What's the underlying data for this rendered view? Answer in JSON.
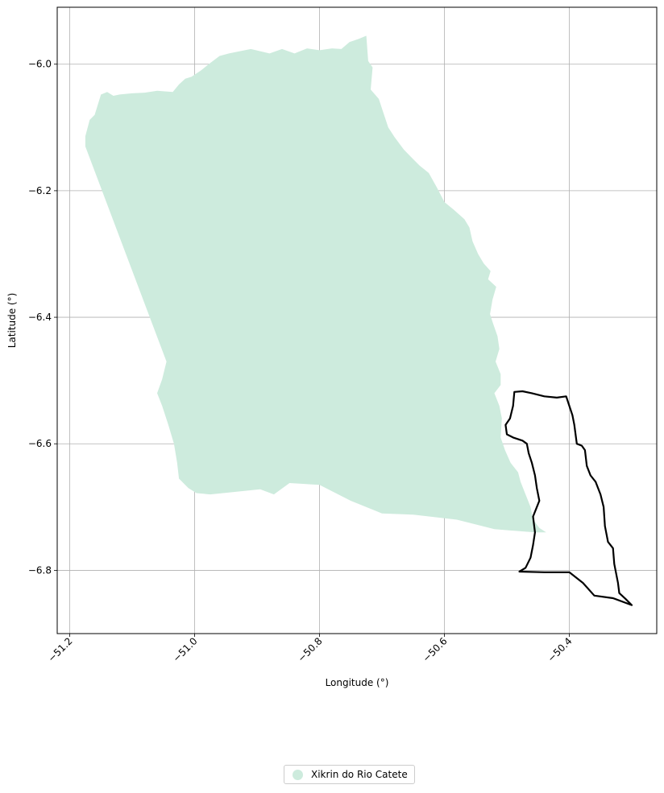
{
  "chart_data": {
    "type": "map",
    "xlabel": "Longitude (°)",
    "ylabel": "Latitude (°)",
    "xlim": [
      -51.22,
      -50.26
    ],
    "ylim": [
      -6.9,
      -5.91
    ],
    "x_ticks": [
      -51.2,
      -51.0,
      -50.8,
      -50.6,
      -50.4
    ],
    "x_tick_labels": [
      "−51.2",
      "−51.0",
      "−50.8",
      "−50.6",
      "−50.4"
    ],
    "y_ticks": [
      -6.0,
      -6.2,
      -6.4,
      -6.6,
      -6.8
    ],
    "y_tick_labels": [
      "−6.0",
      "−6.2",
      "−6.4",
      "−6.6",
      "−6.8"
    ],
    "grid": true,
    "legend_placement": "bottom-center",
    "layers": [
      {
        "name": "Xikrin do Rio Catete",
        "style": "filled",
        "color": "#cdebdd",
        "coords": [
          [
            -51.175,
            -6.114
          ],
          [
            -51.168,
            -6.088
          ],
          [
            -51.16,
            -6.08
          ],
          [
            -51.15,
            -6.048
          ],
          [
            -51.14,
            -6.044
          ],
          [
            -51.13,
            -6.05
          ],
          [
            -51.12,
            -6.048
          ],
          [
            -51.1,
            -6.046
          ],
          [
            -51.08,
            -6.045
          ],
          [
            -51.06,
            -6.042
          ],
          [
            -51.035,
            -6.044
          ],
          [
            -51.025,
            -6.032
          ],
          [
            -51.015,
            -6.023
          ],
          [
            -51.005,
            -6.02
          ],
          [
            -50.99,
            -6.01
          ],
          [
            -50.975,
            -5.998
          ],
          [
            -50.96,
            -5.987
          ],
          [
            -50.945,
            -5.983
          ],
          [
            -50.93,
            -5.98
          ],
          [
            -50.91,
            -5.976
          ],
          [
            -50.88,
            -5.983
          ],
          [
            -50.86,
            -5.976
          ],
          [
            -50.84,
            -5.983
          ],
          [
            -50.82,
            -5.975
          ],
          [
            -50.8,
            -5.978
          ],
          [
            -50.78,
            -5.975
          ],
          [
            -50.765,
            -5.976
          ],
          [
            -50.752,
            -5.965
          ],
          [
            -50.737,
            -5.96
          ],
          [
            -50.725,
            -5.955
          ],
          [
            -50.722,
            -5.995
          ],
          [
            -50.715,
            -6.005
          ],
          [
            -50.718,
            -6.04
          ],
          [
            -50.705,
            -6.055
          ],
          [
            -50.7,
            -6.07
          ],
          [
            -50.69,
            -6.1
          ],
          [
            -50.68,
            -6.115
          ],
          [
            -50.665,
            -6.135
          ],
          [
            -50.65,
            -6.15
          ],
          [
            -50.64,
            -6.16
          ],
          [
            -50.625,
            -6.172
          ],
          [
            -50.612,
            -6.195
          ],
          [
            -50.6,
            -6.218
          ],
          [
            -50.585,
            -6.23
          ],
          [
            -50.568,
            -6.245
          ],
          [
            -50.56,
            -6.258
          ],
          [
            -50.555,
            -6.28
          ],
          [
            -50.546,
            -6.3
          ],
          [
            -50.537,
            -6.315
          ],
          [
            -50.526,
            -6.327
          ],
          [
            -50.53,
            -6.34
          ],
          [
            -50.517,
            -6.352
          ],
          [
            -50.523,
            -6.372
          ],
          [
            -50.527,
            -6.395
          ],
          [
            -50.522,
            -6.41
          ],
          [
            -50.515,
            -6.43
          ],
          [
            -50.512,
            -6.45
          ],
          [
            -50.518,
            -6.47
          ],
          [
            -50.51,
            -6.49
          ],
          [
            -50.51,
            -6.507
          ],
          [
            -50.52,
            -6.52
          ],
          [
            -50.512,
            -6.54
          ],
          [
            -50.508,
            -6.56
          ],
          [
            -50.51,
            -6.59
          ],
          [
            -50.503,
            -6.61
          ],
          [
            -50.494,
            -6.63
          ],
          [
            -50.482,
            -6.645
          ],
          [
            -50.478,
            -6.66
          ],
          [
            -50.47,
            -6.68
          ],
          [
            -50.462,
            -6.7
          ],
          [
            -50.458,
            -6.72
          ],
          [
            -50.448,
            -6.733
          ],
          [
            -50.437,
            -6.74
          ],
          [
            -50.455,
            -6.74
          ],
          [
            -50.52,
            -6.735
          ],
          [
            -50.58,
            -6.72
          ],
          [
            -50.65,
            -6.712
          ],
          [
            -50.7,
            -6.71
          ],
          [
            -50.75,
            -6.69
          ],
          [
            -50.8,
            -6.665
          ],
          [
            -50.848,
            -6.662
          ],
          [
            -50.873,
            -6.68
          ],
          [
            -50.895,
            -6.672
          ],
          [
            -50.945,
            -6.677
          ],
          [
            -50.975,
            -6.68
          ],
          [
            -50.997,
            -6.678
          ],
          [
            -51.01,
            -6.67
          ],
          [
            -51.025,
            -6.655
          ],
          [
            -51.028,
            -6.63
          ],
          [
            -51.033,
            -6.6
          ],
          [
            -51.042,
            -6.57
          ],
          [
            -51.052,
            -6.54
          ],
          [
            -51.06,
            -6.52
          ],
          [
            -51.052,
            -6.498
          ],
          [
            -51.045,
            -6.47
          ],
          [
            -51.175,
            -6.13
          ]
        ]
      },
      {
        "name": "",
        "style": "outline",
        "color": "#000000",
        "coords": [
          [
            -50.488,
            -6.518
          ],
          [
            -50.475,
            -6.517
          ],
          [
            -50.46,
            -6.52
          ],
          [
            -50.44,
            -6.525
          ],
          [
            -50.42,
            -6.527
          ],
          [
            -50.405,
            -6.525
          ],
          [
            -50.4,
            -6.54
          ],
          [
            -50.395,
            -6.555
          ],
          [
            -50.392,
            -6.57
          ],
          [
            -50.388,
            -6.6
          ],
          [
            -50.38,
            -6.603
          ],
          [
            -50.375,
            -6.61
          ],
          [
            -50.372,
            -6.635
          ],
          [
            -50.366,
            -6.65
          ],
          [
            -50.358,
            -6.66
          ],
          [
            -50.35,
            -6.68
          ],
          [
            -50.345,
            -6.7
          ],
          [
            -50.343,
            -6.73
          ],
          [
            -50.338,
            -6.755
          ],
          [
            -50.33,
            -6.765
          ],
          [
            -50.328,
            -6.79
          ],
          [
            -50.322,
            -6.82
          ],
          [
            -50.32,
            -6.836
          ],
          [
            -50.31,
            -6.845
          ],
          [
            -50.3,
            -6.855
          ],
          [
            -50.33,
            -6.844
          ],
          [
            -50.36,
            -6.84
          ],
          [
            -50.378,
            -6.82
          ],
          [
            -50.4,
            -6.803
          ],
          [
            -50.44,
            -6.803
          ],
          [
            -50.48,
            -6.802
          ],
          [
            -50.47,
            -6.796
          ],
          [
            -50.462,
            -6.78
          ],
          [
            -50.458,
            -6.76
          ],
          [
            -50.455,
            -6.74
          ],
          [
            -50.458,
            -6.715
          ],
          [
            -50.452,
            -6.7
          ],
          [
            -50.448,
            -6.69
          ],
          [
            -50.452,
            -6.67
          ],
          [
            -50.455,
            -6.65
          ],
          [
            -50.46,
            -6.63
          ],
          [
            -50.465,
            -6.615
          ],
          [
            -50.468,
            -6.6
          ],
          [
            -50.475,
            -6.595
          ],
          [
            -50.49,
            -6.59
          ],
          [
            -50.5,
            -6.585
          ],
          [
            -50.502,
            -6.57
          ],
          [
            -50.495,
            -6.56
          ],
          [
            -50.49,
            -6.54
          ],
          [
            -50.488,
            -6.518
          ]
        ]
      }
    ],
    "legend": [
      {
        "label": "Xikrin do Rio Catete",
        "color": "#cdebdd"
      }
    ]
  }
}
